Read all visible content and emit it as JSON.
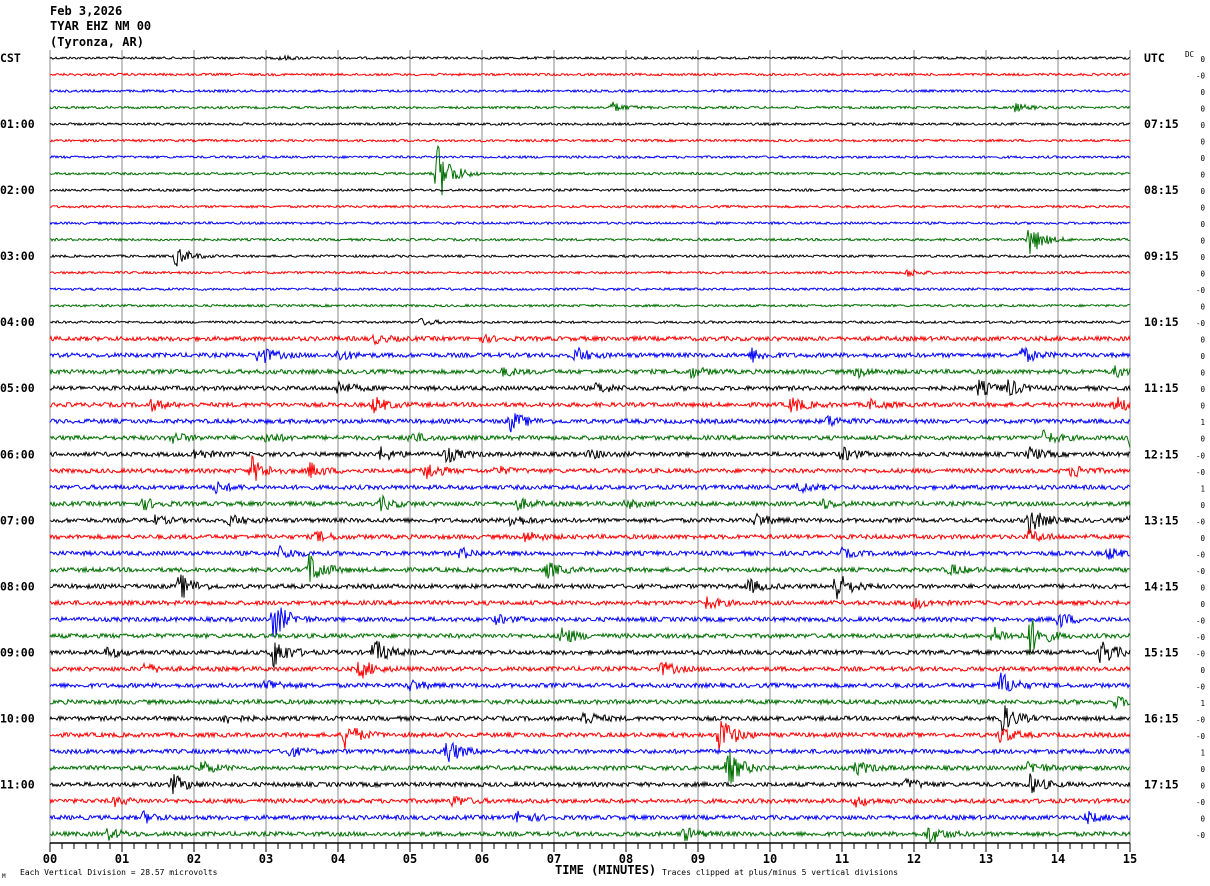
{
  "header": {
    "date": "Feb 3,2026",
    "station": "TYAR EHZ NM 00",
    "location": "(Tyronza, AR)"
  },
  "left_timezone": "CST",
  "right_timezone": "UTC",
  "dc_label": "DC",
  "footer": {
    "scale_note": "Each Vertical Division =   28.57 microvolts",
    "clip_note": "Traces clipped at plus/minus 5 vertical divisions",
    "corner_mark": "M"
  },
  "chart_data": {
    "type": "line",
    "xlabel": "TIME (MINUTES)",
    "xlim": [
      0,
      15
    ],
    "x_tick_labels": [
      "00",
      "01",
      "02",
      "03",
      "04",
      "05",
      "06",
      "07",
      "08",
      "09",
      "10",
      "11",
      "12",
      "13",
      "14",
      "15"
    ],
    "grid": true,
    "trace_colors": [
      "#000000",
      "#ff0000",
      "#0000ff",
      "#007000"
    ],
    "trace_count": 48,
    "left_hour_labels": [
      {
        "trace": 4,
        "label": "01:00"
      },
      {
        "trace": 8,
        "label": "02:00"
      },
      {
        "trace": 12,
        "label": "03:00"
      },
      {
        "trace": 16,
        "label": "04:00"
      },
      {
        "trace": 20,
        "label": "05:00"
      },
      {
        "trace": 24,
        "label": "06:00"
      },
      {
        "trace": 28,
        "label": "07:00"
      },
      {
        "trace": 32,
        "label": "08:00"
      },
      {
        "trace": 36,
        "label": "09:00"
      },
      {
        "trace": 40,
        "label": "10:00"
      },
      {
        "trace": 44,
        "label": "11:00"
      }
    ],
    "right_hour_labels": [
      {
        "trace": 4,
        "label": "07:15"
      },
      {
        "trace": 8,
        "label": "08:15"
      },
      {
        "trace": 12,
        "label": "09:15"
      },
      {
        "trace": 16,
        "label": "10:15"
      },
      {
        "trace": 20,
        "label": "11:15"
      },
      {
        "trace": 24,
        "label": "12:15"
      },
      {
        "trace": 28,
        "label": "13:15"
      },
      {
        "trace": 32,
        "label": "14:15"
      },
      {
        "trace": 36,
        "label": "15:15"
      },
      {
        "trace": 40,
        "label": "16:15"
      },
      {
        "trace": 44,
        "label": "17:15"
      }
    ],
    "dc_offsets": [
      "0",
      "-0",
      "0",
      "0",
      "0",
      "0",
      "0",
      "0",
      "0",
      "0",
      "0",
      "0",
      "0",
      "0",
      "-0",
      "0",
      "-0",
      "0",
      "0",
      "0",
      "0",
      "0",
      "1",
      "0",
      "-0",
      "-0",
      "1",
      "0",
      "-0",
      "0",
      "-0",
      "-0",
      "0",
      "0",
      "-0",
      "-0",
      "-0",
      "0",
      "-0",
      "1",
      "-0",
      "-0",
      "1",
      "0",
      "0",
      "-0",
      "0",
      "-0"
    ],
    "clip_divisions": 5,
    "events": [
      [
        0,
        3.2,
        0.3
      ],
      [
        3,
        7.8,
        0.8
      ],
      [
        3,
        13.4,
        0.6
      ],
      [
        7,
        5.37,
        5
      ],
      [
        11,
        13.6,
        2.5
      ],
      [
        12,
        1.75,
        1.5
      ],
      [
        13,
        11.9,
        0.6
      ],
      [
        16,
        5.15,
        0.5
      ],
      [
        17,
        4.5,
        0.6
      ],
      [
        17,
        6.0,
        0.4
      ],
      [
        18,
        2.9,
        1.5
      ],
      [
        18,
        4.0,
        0.8
      ],
      [
        18,
        7.3,
        1.2
      ],
      [
        18,
        9.75,
        1
      ],
      [
        18,
        13.5,
        1.2
      ],
      [
        19,
        6.3,
        0.6
      ],
      [
        19,
        8.9,
        0.8
      ],
      [
        19,
        11.2,
        0.8
      ],
      [
        19,
        14.8,
        0.8
      ],
      [
        20,
        4.0,
        1
      ],
      [
        20,
        7.6,
        0.8
      ],
      [
        20,
        12.9,
        1.2
      ],
      [
        20,
        13.3,
        1.2
      ],
      [
        21,
        1.4,
        0.8
      ],
      [
        21,
        4.5,
        1.2
      ],
      [
        21,
        10.3,
        1.2
      ],
      [
        21,
        11.4,
        0.8
      ],
      [
        21,
        14.8,
        1.2
      ],
      [
        22,
        6.4,
        1.5
      ],
      [
        22,
        10.8,
        0.8
      ],
      [
        23,
        1.7,
        0.8
      ],
      [
        23,
        3.0,
        0.8
      ],
      [
        23,
        5.0,
        0.8
      ],
      [
        23,
        13.8,
        1
      ],
      [
        23,
        15.0,
        1.2
      ],
      [
        24,
        2.0,
        0.8
      ],
      [
        24,
        4.6,
        1
      ],
      [
        24,
        5.5,
        1.2
      ],
      [
        24,
        7.5,
        0.6
      ],
      [
        24,
        11.0,
        1
      ],
      [
        24,
        13.6,
        1
      ],
      [
        25,
        2.8,
        2
      ],
      [
        25,
        3.6,
        1.2
      ],
      [
        25,
        5.2,
        1.5
      ],
      [
        25,
        6.2,
        0.6
      ],
      [
        25,
        14.2,
        1
      ],
      [
        26,
        2.3,
        0.8
      ],
      [
        26,
        10.4,
        0.8
      ],
      [
        27,
        1.3,
        0.8
      ],
      [
        27,
        4.6,
        1
      ],
      [
        27,
        6.5,
        0.8
      ],
      [
        27,
        8.0,
        0.6
      ],
      [
        27,
        10.7,
        0.8
      ],
      [
        28,
        1.4,
        0.8
      ],
      [
        28,
        2.5,
        0.8
      ],
      [
        28,
        6.4,
        1
      ],
      [
        28,
        9.8,
        1
      ],
      [
        28,
        13.6,
        2
      ],
      [
        28,
        15.0,
        1.5
      ],
      [
        29,
        3.7,
        0.8
      ],
      [
        29,
        6.6,
        0.8
      ],
      [
        29,
        13.6,
        1
      ],
      [
        30,
        3.2,
        1
      ],
      [
        30,
        5.7,
        0.8
      ],
      [
        30,
        11.0,
        0.6
      ],
      [
        30,
        14.7,
        0.8
      ],
      [
        31,
        3.6,
        2.5
      ],
      [
        31,
        6.9,
        1.2
      ],
      [
        31,
        12.5,
        0.8
      ],
      [
        32,
        1.8,
        2
      ],
      [
        32,
        9.7,
        1
      ],
      [
        32,
        10.9,
        2.5
      ],
      [
        33,
        9.1,
        1
      ],
      [
        33,
        12.0,
        0.8
      ],
      [
        34,
        3.1,
        3
      ],
      [
        34,
        6.2,
        0.6
      ],
      [
        34,
        14.0,
        1.2
      ],
      [
        35,
        7.1,
        1.5
      ],
      [
        35,
        13.6,
        3
      ],
      [
        35,
        13.1,
        1.2
      ],
      [
        36,
        0.8,
        0.8
      ],
      [
        36,
        3.1,
        2.5
      ],
      [
        36,
        4.5,
        2
      ],
      [
        36,
        14.6,
        2
      ],
      [
        37,
        1.3,
        0.8
      ],
      [
        37,
        4.3,
        1.5
      ],
      [
        37,
        8.5,
        1
      ],
      [
        38,
        3.0,
        1
      ],
      [
        38,
        5.0,
        0.8
      ],
      [
        38,
        13.2,
        2
      ],
      [
        39,
        14.8,
        0.8
      ],
      [
        40,
        2.4,
        0.8
      ],
      [
        40,
        7.4,
        1.2
      ],
      [
        40,
        13.2,
        2.5
      ],
      [
        41,
        4.1,
        2
      ],
      [
        41,
        9.3,
        3
      ],
      [
        41,
        13.2,
        1.2
      ],
      [
        42,
        5.5,
        2
      ],
      [
        42,
        3.3,
        0.8
      ],
      [
        43,
        2.1,
        1
      ],
      [
        43,
        9.4,
        3
      ],
      [
        43,
        11.2,
        1
      ],
      [
        43,
        13.6,
        1
      ],
      [
        44,
        1.7,
        1.5
      ],
      [
        44,
        11.9,
        0.8
      ],
      [
        44,
        13.6,
        1.5
      ],
      [
        45,
        0.9,
        0.6
      ],
      [
        45,
        5.6,
        0.8
      ],
      [
        45,
        11.2,
        0.8
      ],
      [
        46,
        1.3,
        0.8
      ],
      [
        46,
        6.5,
        1
      ],
      [
        46,
        14.4,
        0.8
      ],
      [
        47,
        0.8,
        0.8
      ],
      [
        47,
        8.8,
        1
      ],
      [
        47,
        12.2,
        1.5
      ]
    ]
  }
}
